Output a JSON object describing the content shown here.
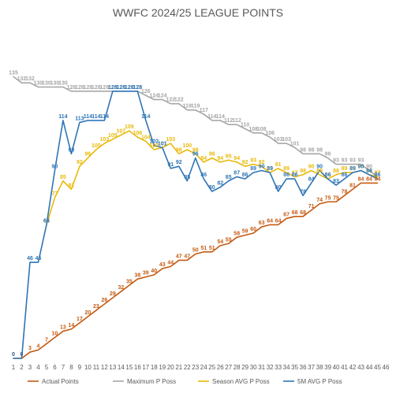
{
  "chart_data": {
    "type": "line",
    "title": "WWFC 2024/25 LEAGUE POINTS",
    "xlabel": "",
    "ylabel": "",
    "x": [
      1,
      2,
      3,
      4,
      5,
      6,
      7,
      8,
      9,
      10,
      11,
      12,
      13,
      14,
      15,
      16,
      17,
      18,
      19,
      20,
      21,
      22,
      23,
      24,
      25,
      26,
      27,
      28,
      29,
      30,
      31,
      32,
      33,
      34,
      35,
      36,
      37,
      38,
      39,
      40,
      41,
      42,
      43,
      44,
      45,
      46
    ],
    "ylim": [
      0,
      140
    ],
    "grid": false,
    "legend_position": "bottom",
    "series": [
      {
        "name": "Actual Points",
        "color": "#C55A11",
        "values": [
          0,
          0,
          3,
          4,
          7,
          10,
          13,
          14,
          17,
          20,
          23,
          26,
          29,
          32,
          35,
          38,
          39,
          40,
          43,
          44,
          47,
          47,
          50,
          51,
          51,
          54,
          55,
          58,
          59,
          60,
          63,
          64,
          64,
          67,
          68,
          68,
          71,
          74,
          75,
          75,
          78,
          81,
          84,
          84,
          84,
          null
        ]
      },
      {
        "name": "Maximum P Poss",
        "color": "#A6A6A6",
        "values": [
          135,
          132,
          132,
          130,
          130,
          130,
          130,
          128,
          128,
          128,
          128,
          128,
          128,
          128,
          128,
          128,
          126,
          124,
          124,
          122,
          122,
          119,
          119,
          117,
          114,
          114,
          112,
          112,
          110,
          108,
          108,
          106,
          103,
          103,
          101,
          98,
          98,
          98,
          96,
          93,
          93,
          93,
          93,
          90,
          87,
          null
        ]
      },
      {
        "name": "Season AVG P Poss",
        "color": "#E8B90A",
        "values": [
          null,
          null,
          null,
          null,
          64,
          77,
          85,
          81,
          92,
          96,
          100,
          103,
          105,
          107,
          109,
          106,
          104,
          100,
          101,
          103,
          98,
          100,
          98,
          94,
          96,
          94,
          95,
          94,
          92,
          93,
          92,
          89,
          91,
          89,
          87,
          88,
          90,
          88,
          86,
          88,
          89,
          89,
          90,
          88,
          87,
          null
        ]
      },
      {
        "name": "5M AVG P Poss",
        "color": "#2E75B6",
        "values": [
          0,
          0,
          46,
          46,
          64,
          90,
          114,
          98,
          113,
          114,
          114,
          114,
          128,
          128,
          128,
          128,
          114,
          102,
          101,
          91,
          92,
          85,
          96,
          86,
          80,
          82,
          85,
          87,
          86,
          89,
          90,
          89,
          80,
          86,
          86,
          78,
          84,
          90,
          86,
          83,
          86,
          89,
          90,
          88,
          86,
          null
        ]
      }
    ]
  }
}
